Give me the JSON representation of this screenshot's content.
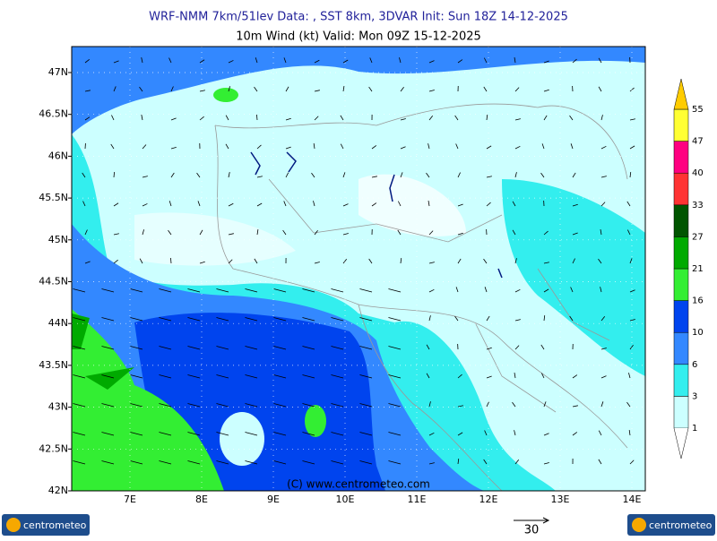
{
  "header": {
    "title": "WRF-NMM 7km/51lev   Data: , SST 8km, 3DVAR   Init: Sun 18Z 14-12-2025",
    "subtitle": "10m Wind (kt)  Valid: Mon 09Z 15-12-2025"
  },
  "map": {
    "lat_labels": [
      "47N",
      "46.5N",
      "46N",
      "45.5N",
      "45N",
      "44.5N",
      "44N",
      "43.5N",
      "43N",
      "42.5N",
      "42N"
    ],
    "lon_labels": [
      "7E",
      "8E",
      "9E",
      "10E",
      "11E",
      "12E",
      "13E",
      "14E"
    ],
    "copyright": "(C) www.centrometeo.com"
  },
  "colorbar": {
    "labels": [
      "1",
      "3",
      "6",
      "10",
      "16",
      "21",
      "27",
      "33",
      "40",
      "47",
      "55"
    ],
    "colors": [
      "#ccffff",
      "#33eeee",
      "#3388ff",
      "#0044ee",
      "#33ee33",
      "#00aa00",
      "#005500",
      "#ff3333",
      "#ff0080",
      "#ffff33",
      "#ffcc00"
    ]
  },
  "reference_vector": {
    "label": "30"
  },
  "logos": [
    "centrometeo",
    "centrometeo"
  ]
}
